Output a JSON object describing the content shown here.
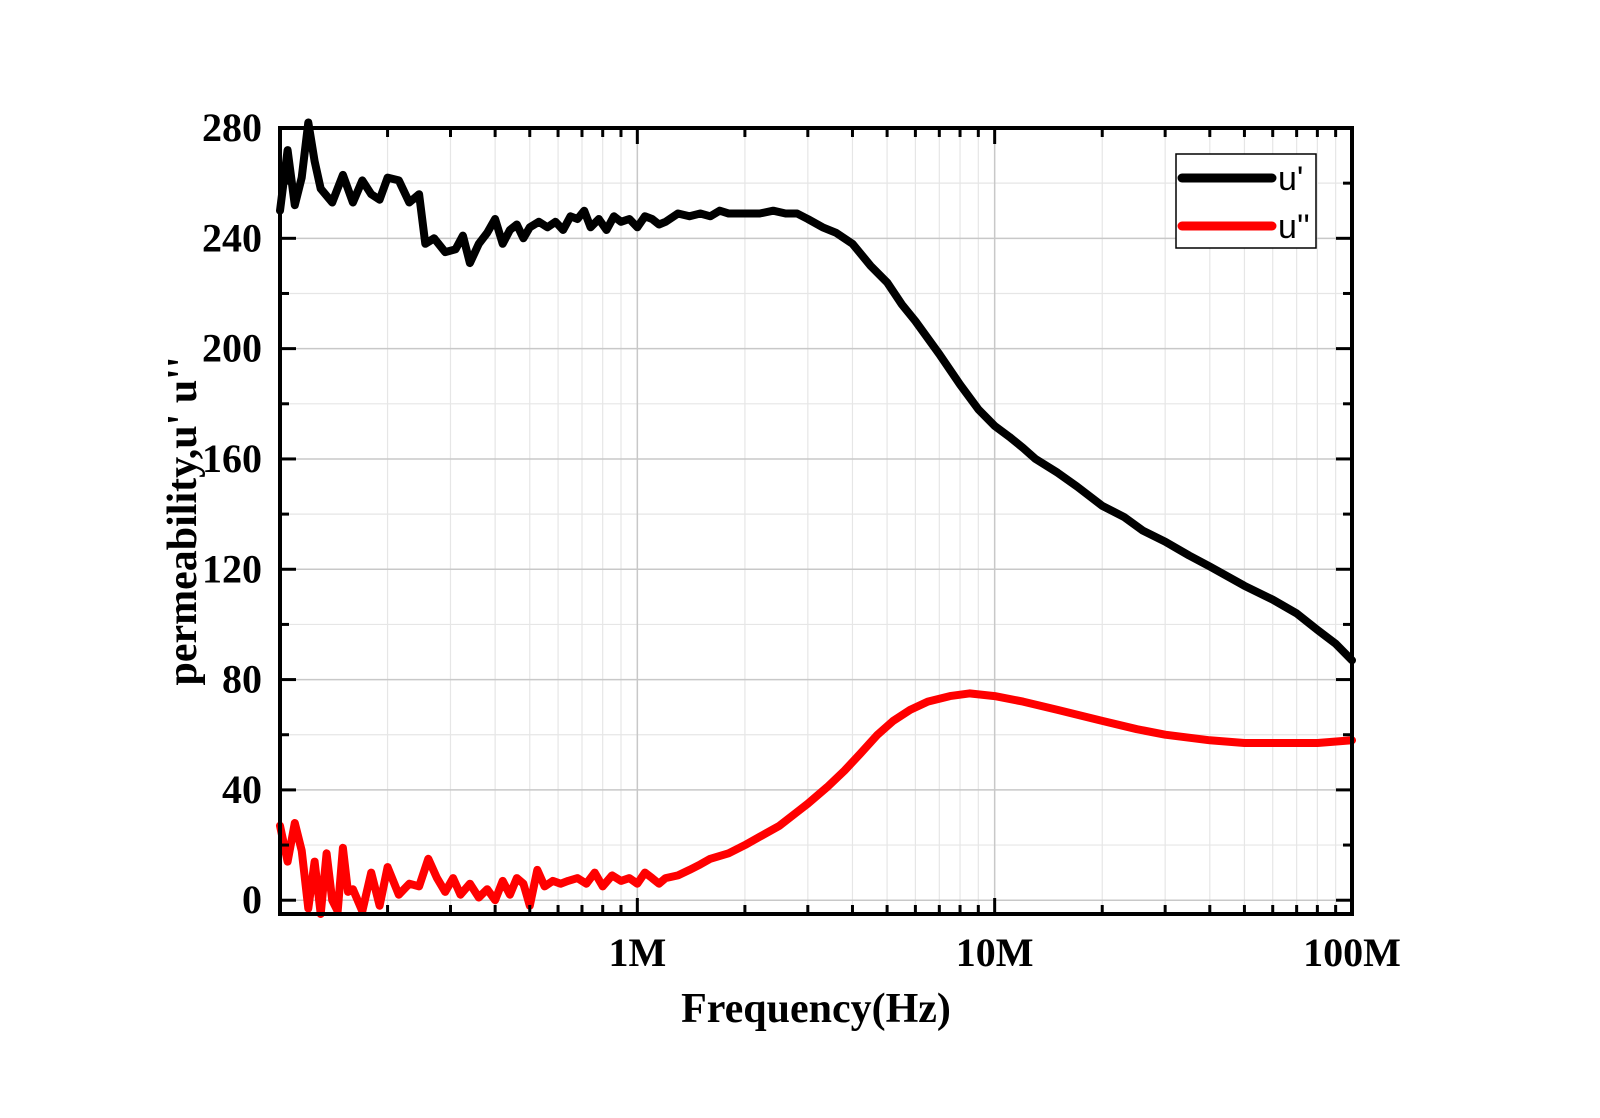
{
  "chart_data": {
    "type": "line",
    "title": "",
    "xlabel": "Frequency(Hz)",
    "ylabel": "permeability,u'  u''",
    "xscale": "log",
    "xlim": [
      100000,
      100000000
    ],
    "ylim": [
      -5,
      280
    ],
    "grid": true,
    "legend_position": "top-right",
    "x_ticks": [
      {
        "value": 1000000,
        "label": "1M"
      },
      {
        "value": 10000000,
        "label": "10M"
      },
      {
        "value": 100000000,
        "label": "100M"
      }
    ],
    "y_ticks": [
      {
        "value": 0,
        "label": "0"
      },
      {
        "value": 40,
        "label": "40"
      },
      {
        "value": 80,
        "label": "80"
      },
      {
        "value": 120,
        "label": "120"
      },
      {
        "value": 160,
        "label": "160"
      },
      {
        "value": 200,
        "label": "200"
      },
      {
        "value": 240,
        "label": "240"
      },
      {
        "value": 280,
        "label": "280"
      }
    ],
    "series": [
      {
        "name": "u'",
        "color": "#000000",
        "points": [
          [
            100000,
            250
          ],
          [
            105000,
            272
          ],
          [
            110000,
            252
          ],
          [
            115000,
            262
          ],
          [
            120000,
            282
          ],
          [
            125000,
            268
          ],
          [
            130000,
            258
          ],
          [
            140000,
            253
          ],
          [
            150000,
            263
          ],
          [
            160000,
            253
          ],
          [
            170000,
            261
          ],
          [
            180000,
            256
          ],
          [
            190000,
            254
          ],
          [
            200000,
            262
          ],
          [
            215000,
            261
          ],
          [
            230000,
            253
          ],
          [
            245000,
            256
          ],
          [
            255000,
            238
          ],
          [
            270000,
            240
          ],
          [
            290000,
            235
          ],
          [
            310000,
            236
          ],
          [
            325000,
            241
          ],
          [
            340000,
            231
          ],
          [
            360000,
            238
          ],
          [
            380000,
            242
          ],
          [
            400000,
            247
          ],
          [
            420000,
            238
          ],
          [
            440000,
            243
          ],
          [
            460000,
            245
          ],
          [
            480000,
            240
          ],
          [
            500000,
            244
          ],
          [
            530000,
            246
          ],
          [
            560000,
            244
          ],
          [
            590000,
            246
          ],
          [
            620000,
            243
          ],
          [
            650000,
            248
          ],
          [
            680000,
            247
          ],
          [
            710000,
            250
          ],
          [
            740000,
            244
          ],
          [
            780000,
            247
          ],
          [
            820000,
            243
          ],
          [
            860000,
            248
          ],
          [
            900000,
            246
          ],
          [
            950000,
            247
          ],
          [
            1000000,
            244
          ],
          [
            1050000,
            248
          ],
          [
            1100000,
            247
          ],
          [
            1150000,
            245
          ],
          [
            1200000,
            246
          ],
          [
            1300000,
            249
          ],
          [
            1400000,
            248
          ],
          [
            1500000,
            249
          ],
          [
            1600000,
            248
          ],
          [
            1700000,
            250
          ],
          [
            1800000,
            249
          ],
          [
            1900000,
            249
          ],
          [
            2000000,
            249
          ],
          [
            2200000,
            249
          ],
          [
            2400000,
            250
          ],
          [
            2600000,
            249
          ],
          [
            2800000,
            249
          ],
          [
            3000000,
            247
          ],
          [
            3300000,
            244
          ],
          [
            3600000,
            242
          ],
          [
            4000000,
            238
          ],
          [
            4500000,
            230
          ],
          [
            5000000,
            224
          ],
          [
            5500000,
            216
          ],
          [
            6000000,
            210
          ],
          [
            7000000,
            198
          ],
          [
            8000000,
            187
          ],
          [
            9000000,
            178
          ],
          [
            10000000,
            172
          ],
          [
            11000000,
            168
          ],
          [
            12000000,
            164
          ],
          [
            13000000,
            160
          ],
          [
            15000000,
            155
          ],
          [
            17000000,
            150
          ],
          [
            20000000,
            143
          ],
          [
            23000000,
            139
          ],
          [
            26000000,
            134
          ],
          [
            30000000,
            130
          ],
          [
            35000000,
            125
          ],
          [
            40000000,
            121
          ],
          [
            50000000,
            114
          ],
          [
            60000000,
            109
          ],
          [
            70000000,
            104
          ],
          [
            80000000,
            98
          ],
          [
            90000000,
            93
          ],
          [
            100000000,
            87
          ]
        ]
      },
      {
        "name": "u''",
        "color": "#ff0000",
        "points": [
          [
            100000,
            27
          ],
          [
            105000,
            14
          ],
          [
            110000,
            28
          ],
          [
            115000,
            18
          ],
          [
            120000,
            -3
          ],
          [
            125000,
            14
          ],
          [
            130000,
            -5
          ],
          [
            135000,
            17
          ],
          [
            140000,
            0
          ],
          [
            145000,
            -4
          ],
          [
            150000,
            19
          ],
          [
            155000,
            3
          ],
          [
            160000,
            4
          ],
          [
            170000,
            -4
          ],
          [
            180000,
            10
          ],
          [
            190000,
            -2
          ],
          [
            200000,
            12
          ],
          [
            215000,
            2
          ],
          [
            230000,
            6
          ],
          [
            245000,
            5
          ],
          [
            260000,
            15
          ],
          [
            275000,
            8
          ],
          [
            290000,
            3
          ],
          [
            305000,
            8
          ],
          [
            320000,
            2
          ],
          [
            340000,
            6
          ],
          [
            360000,
            1
          ],
          [
            380000,
            4
          ],
          [
            400000,
            0
          ],
          [
            420000,
            7
          ],
          [
            440000,
            2
          ],
          [
            460000,
            8
          ],
          [
            480000,
            6
          ],
          [
            500000,
            -2
          ],
          [
            525000,
            11
          ],
          [
            550000,
            5
          ],
          [
            580000,
            7
          ],
          [
            610000,
            6
          ],
          [
            640000,
            7
          ],
          [
            680000,
            8
          ],
          [
            720000,
            6
          ],
          [
            760000,
            10
          ],
          [
            800000,
            5
          ],
          [
            850000,
            9
          ],
          [
            900000,
            7
          ],
          [
            950000,
            8
          ],
          [
            1000000,
            6
          ],
          [
            1050000,
            10
          ],
          [
            1100000,
            8
          ],
          [
            1150000,
            6
          ],
          [
            1200000,
            8
          ],
          [
            1300000,
            9
          ],
          [
            1400000,
            11
          ],
          [
            1500000,
            13
          ],
          [
            1600000,
            15
          ],
          [
            1800000,
            17
          ],
          [
            2000000,
            20
          ],
          [
            2200000,
            23
          ],
          [
            2500000,
            27
          ],
          [
            2800000,
            32
          ],
          [
            3000000,
            35
          ],
          [
            3400000,
            41
          ],
          [
            3800000,
            47
          ],
          [
            4200000,
            53
          ],
          [
            4700000,
            60
          ],
          [
            5200000,
            65
          ],
          [
            5800000,
            69
          ],
          [
            6500000,
            72
          ],
          [
            7500000,
            74
          ],
          [
            8500000,
            75
          ],
          [
            10000000,
            74
          ],
          [
            12000000,
            72
          ],
          [
            15000000,
            69
          ],
          [
            20000000,
            65
          ],
          [
            25000000,
            62
          ],
          [
            30000000,
            60
          ],
          [
            40000000,
            58
          ],
          [
            50000000,
            57
          ],
          [
            60000000,
            57
          ],
          [
            80000000,
            57
          ],
          [
            100000000,
            58
          ]
        ]
      }
    ]
  }
}
